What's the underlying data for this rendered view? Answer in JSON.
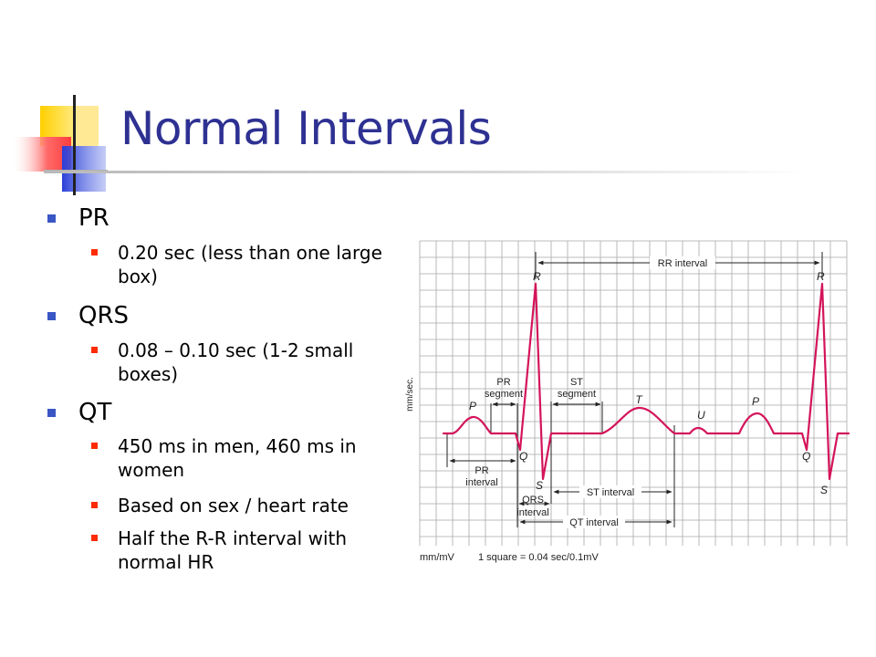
{
  "slide": {
    "title": "Normal Intervals",
    "bullets": [
      {
        "label": "PR",
        "sub": [
          "0.20 sec (less than one large box)"
        ]
      },
      {
        "label": "QRS",
        "sub": [
          "0.08 – 0.10 sec (1-2 small boxes)"
        ]
      },
      {
        "label": "QT",
        "sub": [
          "450 ms in men, 460 ms in women",
          "Based on sex / heart rate",
          "Half the R-R interval with normal HR"
        ]
      }
    ]
  },
  "ecg_figure": {
    "wave_labels": {
      "p1": "P",
      "r1": "R",
      "q1": "Q",
      "s1": "S",
      "t": "T",
      "u": "U",
      "p2": "P",
      "r2": "R",
      "q2": "Q",
      "s2": "S"
    },
    "interval_labels": {
      "rr": "RR interval",
      "pr_segment": [
        "PR",
        "segment"
      ],
      "st_segment": [
        "ST",
        "segment"
      ],
      "pr_interval": [
        "PR",
        "interval"
      ],
      "qrs_interval": [
        "QRS",
        "interval"
      ],
      "st_interval": "ST interval",
      "qt_interval": "QT interval"
    },
    "y_axis_label": "mm/sec.",
    "footer_left": "mm/mV",
    "footer_right": "1 square = 0.04 sec/0.1mV",
    "trace_color": "#d4145a",
    "grid_color": "#a9a9a9"
  }
}
